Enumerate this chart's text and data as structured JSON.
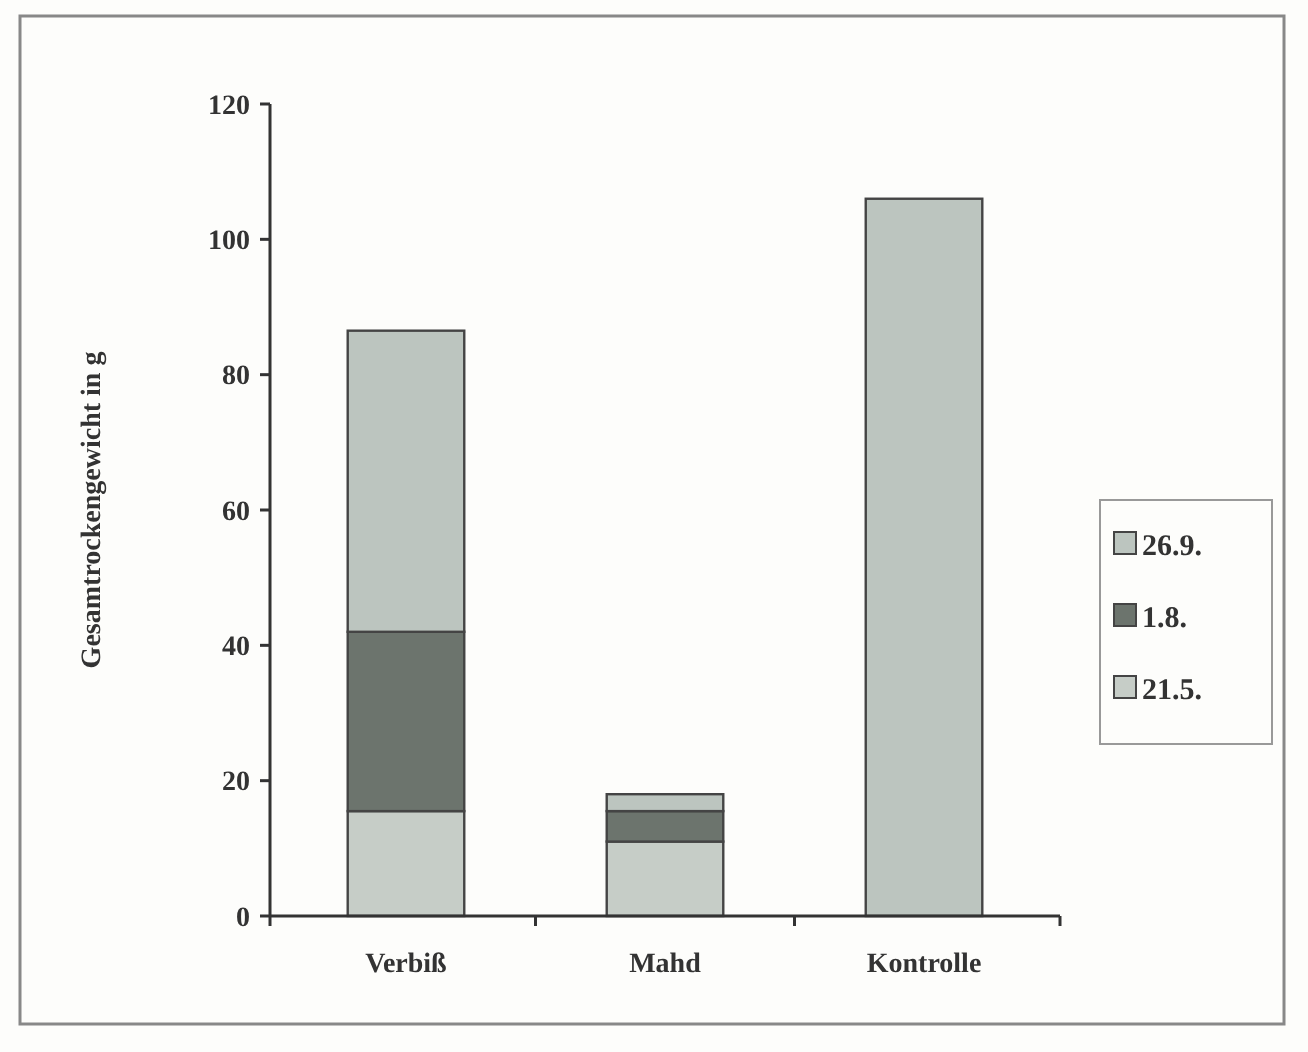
{
  "chart_data": {
    "type": "bar",
    "stacked": true,
    "ylabel": "Gesamtrockengewicht in g",
    "categories": [
      "Verbiß",
      "Mahd",
      "Kontrolle"
    ],
    "series": [
      {
        "name": "21.5.",
        "color": "#c6cdc7",
        "values": [
          15.5,
          11,
          null
        ]
      },
      {
        "name": "1.8.",
        "color": "#6c746d",
        "values": [
          26.5,
          4.5,
          null
        ]
      },
      {
        "name": "26.9.",
        "color": "#bcc5bf",
        "values": [
          44.5,
          2.5,
          106
        ]
      }
    ],
    "ylim": [
      0,
      120
    ],
    "yticks": [
      0,
      20,
      40,
      60,
      80,
      100,
      120
    ],
    "grid": false,
    "legend": "right"
  }
}
